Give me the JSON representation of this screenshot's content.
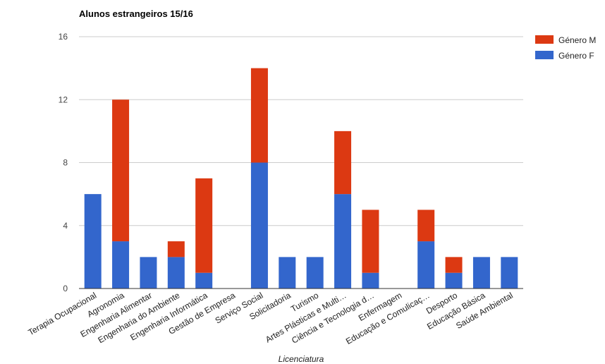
{
  "chart_data": {
    "type": "bar",
    "stacked": true,
    "title": "Alunos estrangeiros 15/16",
    "xlabel": "Licenciatura",
    "ylabel": "",
    "ylim": [
      0,
      16
    ],
    "yticks": [
      0,
      4,
      8,
      12,
      16
    ],
    "grid": true,
    "legend_position": "right",
    "categories": [
      "Terapia Ocupacional",
      "Agronomia",
      "Engenharia Alimentar",
      "Engenharia do Ambiente",
      "Engenharia Informática",
      "Gestão de Empresa",
      "Serviço Social",
      "Solicitadoria",
      "Turismo",
      "Artes Plásticas e Multi…",
      "Ciência e Tecnologia d…",
      "Enfermagem",
      "Educação e Comulicaç…",
      "Desporto",
      "Educação Básica",
      "Saúde Ambiental"
    ],
    "series": [
      {
        "name": "Género F",
        "color": "#3366cc",
        "values": [
          6,
          3,
          2,
          2,
          1,
          0,
          8,
          2,
          2,
          6,
          1,
          0,
          3,
          1,
          2,
          2
        ]
      },
      {
        "name": "Género M",
        "color": "#dc3912",
        "values": [
          0,
          9,
          0,
          1,
          6,
          0,
          6,
          0,
          0,
          4,
          4,
          0,
          2,
          1,
          0,
          0
        ]
      }
    ],
    "legend": [
      {
        "name": "Género M",
        "color": "#dc3912"
      },
      {
        "name": "Género F",
        "color": "#3366cc"
      }
    ]
  }
}
